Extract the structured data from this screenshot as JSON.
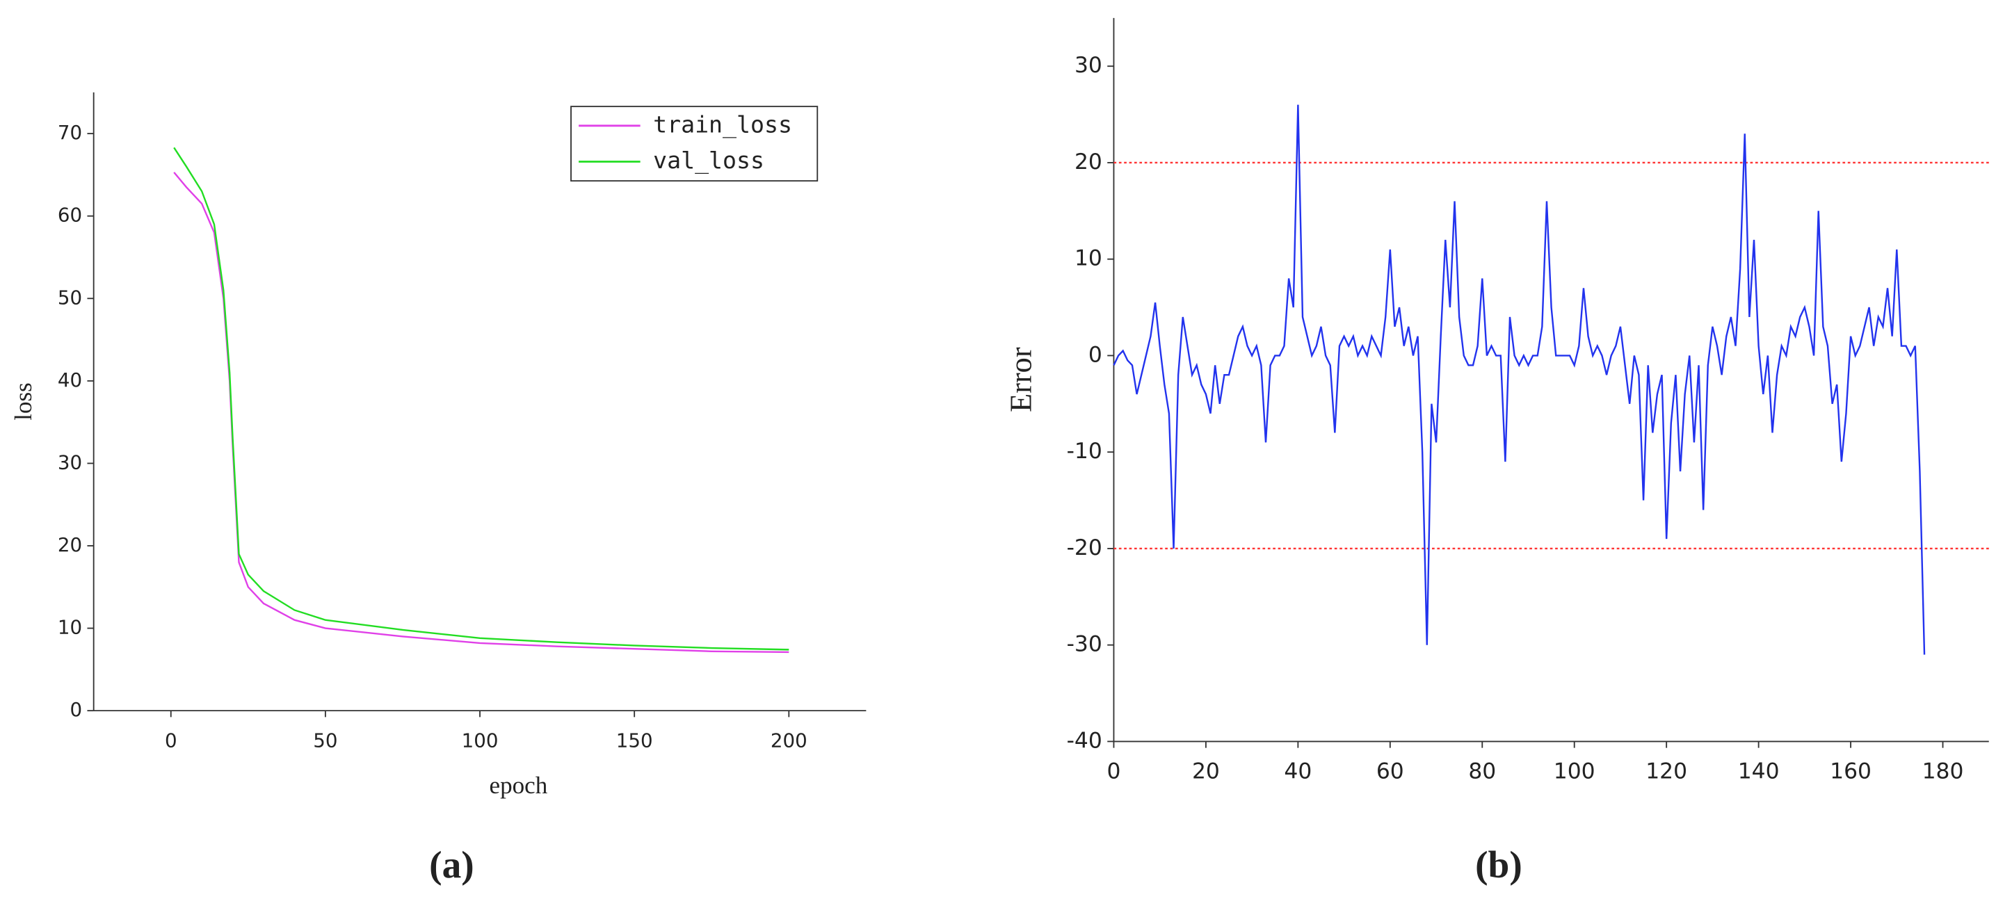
{
  "chart_data": [
    {
      "type": "line",
      "caption": "(a)",
      "xlabel": "epoch",
      "ylabel": "loss",
      "xlim": [
        -25,
        225
      ],
      "xticks": [
        0,
        50,
        100,
        150,
        200
      ],
      "ylim": [
        0,
        75
      ],
      "yticks": [
        0,
        10,
        20,
        30,
        40,
        50,
        60,
        70
      ],
      "legend": "upper right",
      "x": [
        1,
        5,
        10,
        14,
        17,
        19,
        20,
        21,
        22,
        25,
        30,
        40,
        50,
        75,
        100,
        125,
        150,
        175,
        200
      ],
      "series": [
        {
          "name": "train_loss",
          "color": "#e040e8",
          "values": [
            65.3,
            63.5,
            61.5,
            58,
            50,
            40,
            32,
            25,
            18,
            15,
            13,
            11,
            10,
            9,
            8.2,
            7.8,
            7.5,
            7.2,
            7.1
          ]
        },
        {
          "name": "val_loss",
          "color": "#22dd22",
          "values": [
            68.3,
            66,
            63,
            59,
            51,
            41,
            33,
            26,
            19,
            16.5,
            14.5,
            12.2,
            11,
            9.8,
            8.8,
            8.3,
            7.9,
            7.6,
            7.4
          ]
        }
      ]
    },
    {
      "type": "line",
      "caption": "(b)",
      "ylabel": "Error",
      "xlim": [
        0,
        190
      ],
      "xticks": [
        0,
        20,
        40,
        60,
        80,
        100,
        120,
        140,
        160,
        180
      ],
      "ylim": [
        -40,
        35
      ],
      "yticks": [
        -40,
        -30,
        -20,
        -10,
        0,
        10,
        20,
        30
      ],
      "hlines": [
        20,
        -20
      ],
      "hline_color": "#ff3333",
      "color": "#2233ee",
      "x": [
        0,
        1,
        2,
        3,
        4,
        5,
        6,
        7,
        8,
        9,
        10,
        11,
        12,
        13,
        14,
        15,
        16,
        17,
        18,
        19,
        20,
        21,
        22,
        23,
        24,
        25,
        26,
        27,
        28,
        29,
        30,
        31,
        32,
        33,
        34,
        35,
        36,
        37,
        38,
        39,
        40,
        41,
        42,
        43,
        44,
        45,
        46,
        47,
        48,
        49,
        50,
        51,
        52,
        53,
        54,
        55,
        56,
        57,
        58,
        59,
        60,
        61,
        62,
        63,
        64,
        65,
        66,
        67,
        68,
        69,
        70,
        71,
        72,
        73,
        74,
        75,
        76,
        77,
        78,
        79,
        80,
        81,
        82,
        83,
        84,
        85,
        86,
        87,
        88,
        89,
        90,
        91,
        92,
        93,
        94,
        95,
        96,
        97,
        98,
        99,
        100,
        101,
        102,
        103,
        104,
        105,
        106,
        107,
        108,
        109,
        110,
        111,
        112,
        113,
        114,
        115,
        116,
        117,
        118,
        119,
        120,
        121,
        122,
        123,
        124,
        125,
        126,
        127,
        128,
        129,
        130,
        131,
        132,
        133,
        134,
        135,
        136,
        137,
        138,
        139,
        140,
        141,
        142,
        143,
        144,
        145,
        146,
        147,
        148,
        149,
        150,
        151,
        152,
        153,
        154,
        155,
        156,
        157,
        158,
        159,
        160,
        161,
        162,
        163,
        164,
        165,
        166,
        167,
        168,
        169,
        170,
        171,
        172,
        173,
        174,
        175,
        176
      ],
      "values": [
        -1,
        0,
        0.5,
        -0.5,
        -1,
        -4,
        -2,
        0,
        2,
        5.5,
        1,
        -3,
        -6,
        -20,
        -2,
        4,
        1,
        -2,
        -1,
        -3,
        -4,
        -6,
        -1,
        -5,
        -2,
        -2,
        0,
        2,
        3,
        1,
        0,
        1,
        -1,
        -9,
        -1,
        0,
        0,
        1,
        8,
        5,
        26,
        4,
        2,
        0,
        1,
        3,
        0,
        -1,
        -8,
        1,
        2,
        1,
        2,
        0,
        1,
        0,
        2,
        1,
        0,
        4,
        11,
        3,
        5,
        1,
        3,
        0,
        2,
        -10,
        -30,
        -5,
        -9,
        2,
        12,
        5,
        16,
        4,
        0,
        -1,
        -1,
        1,
        8,
        0,
        1,
        0,
        0,
        -11,
        4,
        0,
        -1,
        0,
        -1,
        0,
        0,
        3,
        16,
        5,
        0,
        0,
        0,
        0,
        -1,
        1,
        7,
        2,
        0,
        1,
        0,
        -2,
        0,
        1,
        3,
        -1,
        -5,
        0,
        -2,
        -15,
        -1,
        -8,
        -4,
        -2,
        -19,
        -7,
        -2,
        -12,
        -4,
        0,
        -9,
        -1,
        -16,
        -1,
        3,
        1,
        -2,
        2,
        4,
        1,
        9,
        23,
        4,
        12,
        1,
        -4,
        0,
        -8,
        -2,
        1,
        0,
        3,
        2,
        4,
        5,
        3,
        0,
        15,
        3,
        1,
        -5,
        -3,
        -11,
        -6,
        2,
        0,
        1,
        3,
        5,
        1,
        4,
        3,
        7,
        2,
        11,
        1,
        1,
        0,
        1,
        -12,
        -31
      ]
    }
  ]
}
